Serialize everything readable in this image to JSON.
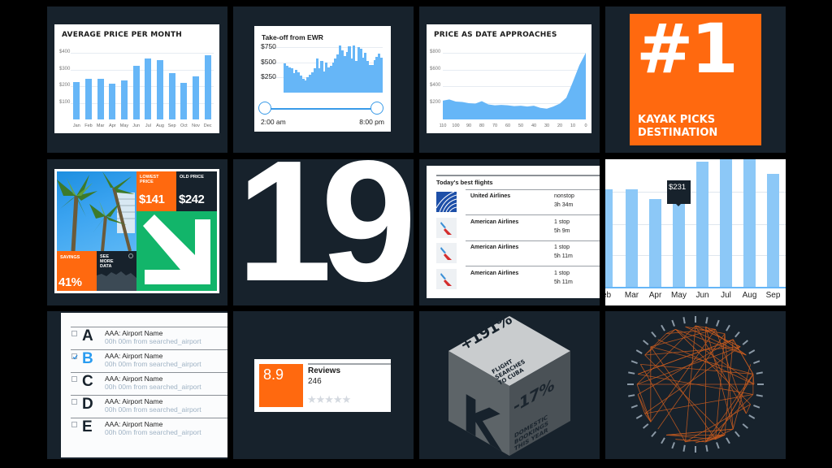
{
  "colors": {
    "tile_bg": "#17222c",
    "page_bg": "#000000",
    "accent_blue": "#66b6f7",
    "kayak_orange": "#ff690f",
    "green": "#12b56a",
    "cube_light": "#c9ccce",
    "cube_mid": "#5d6468",
    "cube_dark": "#4a5156",
    "chord": "#c45a1f"
  },
  "tiles": {
    "avg_price": {
      "title": "AVERAGE PRICE PER MONTH"
    },
    "takeoff": {
      "title": "Take-off from EWR",
      "range_start": "2:00 am",
      "range_end": "8:00 pm"
    },
    "price_approach": {
      "title": "PRICE AS DATE APPROACHES"
    },
    "kayak_pick": {
      "big": "#1",
      "line1": "KAYAK PICKS",
      "line2": "DESTINATION"
    },
    "deal": {
      "lowest_label1": "LOWEST",
      "lowest_label2": "PRICE",
      "lowest_value": "$141",
      "old_label": "OLD PRICE",
      "old_value": "$242",
      "savings_label": "SAVINGS",
      "savings_value": "41%",
      "see1": "SEE",
      "see2": "MORE",
      "see3": "DATA"
    },
    "big_number": {
      "value": "19"
    },
    "best_flights": {
      "title": "Today's best flights",
      "rows": [
        {
          "airline": "United Airlines",
          "stops": "nonstop",
          "duration": "3h 34m",
          "logo": "united-globe"
        },
        {
          "airline": "American Airlines",
          "stops": "1 stop",
          "duration": "5h 9m",
          "logo": "american-tail"
        },
        {
          "airline": "American Airlines",
          "stops": "1 stop",
          "duration": "5h 11m",
          "logo": "american-tail"
        },
        {
          "airline": "American Airlines",
          "stops": "1 stop",
          "duration": "5h 11m",
          "logo": "american-tail"
        }
      ]
    },
    "month_zoom": {
      "tooltip": "$231",
      "months": [
        "eb",
        "Mar",
        "Apr",
        "May",
        "Jun",
        "Jul",
        "Aug",
        "Sep"
      ]
    },
    "airports": {
      "rows": [
        {
          "letter": "A",
          "name": "AAA: Airport Name",
          "sub": "00h 00m from searched_airport",
          "checked": false
        },
        {
          "letter": "B",
          "name": "AAA: Airport Name",
          "sub": "00h 00m from searched_airport",
          "checked": true
        },
        {
          "letter": "C",
          "name": "AAA: Airport Name",
          "sub": "00h 00m from searched_airport",
          "checked": false
        },
        {
          "letter": "D",
          "name": "AAA: Airport Name",
          "sub": "00h 00m from searched_airport",
          "checked": false
        },
        {
          "letter": "E",
          "name": "AAA: Airport Name",
          "sub": "00h 00m from searched_airport",
          "checked": false
        }
      ]
    },
    "reviews": {
      "score": "8.9",
      "label": "Reviews",
      "count": "246",
      "stars": "★★★★★"
    },
    "cube": {
      "top_value": "+191%",
      "top_l1": "FLIGHT",
      "top_l2": "SEARCHES",
      "top_l3": "TO CUBA",
      "side_value": "-17%",
      "side_l1": "DOMESTIC",
      "side_l2": "BOOKINGS",
      "side_l3": "THIS YEAR",
      "logo": "K"
    }
  },
  "chart_data": [
    {
      "type": "bar",
      "title": "AVERAGE PRICE PER MONTH",
      "categories": [
        "Jan",
        "Feb",
        "Mar",
        "Apr",
        "May",
        "Jun",
        "Jul",
        "Aug",
        "Sep",
        "Oct",
        "Nov",
        "Dec"
      ],
      "values": [
        225,
        245,
        245,
        215,
        235,
        320,
        365,
        355,
        280,
        220,
        260,
        385
      ],
      "yticks": [
        "$100",
        "$200",
        "$300",
        "$400"
      ],
      "ylim": [
        0,
        400
      ],
      "grid": true
    },
    {
      "type": "bar",
      "title": "Take-off from EWR",
      "yticks": [
        "$250",
        "$500",
        "$750"
      ],
      "ylim": [
        0,
        800
      ],
      "values": [
        480,
        440,
        420,
        400,
        320,
        380,
        340,
        280,
        230,
        200,
        260,
        290,
        330,
        400,
        560,
        400,
        520,
        350,
        490,
        420,
        440,
        490,
        560,
        630,
        780,
        700,
        600,
        670,
        760,
        560,
        780,
        520,
        750,
        720,
        580,
        650,
        520,
        460,
        450,
        530,
        590,
        640,
        580
      ],
      "xrange": [
        "2:00 am",
        "8:00 pm"
      ],
      "grid": true
    },
    {
      "type": "area",
      "title": "PRICE AS DATE APPROACHES",
      "x": [
        110,
        105,
        100,
        95,
        90,
        85,
        80,
        75,
        70,
        65,
        60,
        55,
        50,
        45,
        40,
        35,
        30,
        25,
        20,
        15,
        10,
        5,
        0
      ],
      "values": [
        225,
        240,
        215,
        210,
        195,
        190,
        220,
        180,
        170,
        175,
        170,
        160,
        165,
        155,
        165,
        140,
        130,
        155,
        190,
        260,
        450,
        650,
        800
      ],
      "xticks": [
        "110",
        "100",
        "90",
        "80",
        "70",
        "60",
        "50",
        "40",
        "30",
        "20",
        "10",
        "0"
      ],
      "yticks": [
        "$200",
        "$400",
        "$600",
        "$800"
      ],
      "ylim": [
        0,
        800
      ],
      "grid": true
    },
    {
      "type": "bar",
      "title": "",
      "categories": [
        "Feb",
        "Mar",
        "Apr",
        "May",
        "Jun",
        "Jul",
        "Aug",
        "Sep"
      ],
      "values": [
        250,
        250,
        225,
        231,
        320,
        370,
        360,
        290
      ],
      "annotation": {
        "category": "May",
        "label": "$231"
      },
      "grid": true
    }
  ]
}
